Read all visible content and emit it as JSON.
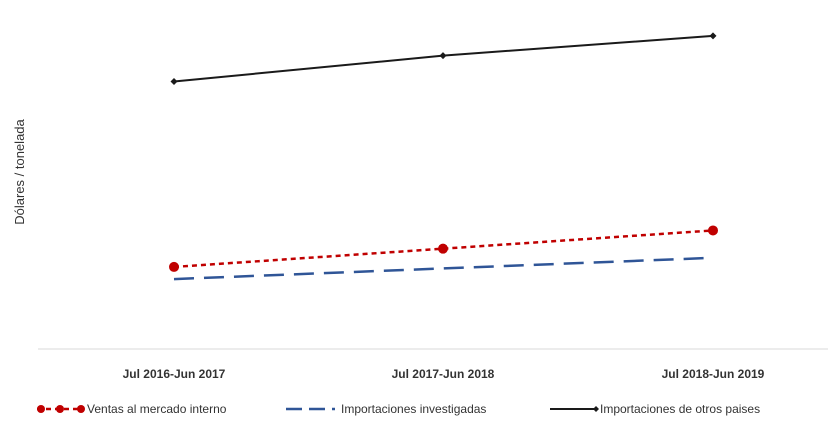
{
  "chart_data": {
    "type": "line",
    "title": "",
    "xlabel": "",
    "ylabel": "Dólares / tonelada",
    "categories": [
      "Jul 2016-Jun 2017",
      "Jul 2017-Jun 2018",
      "Jul 2018-Jun 2019"
    ],
    "ylim": [
      0,
      100
    ],
    "grid": false,
    "legend_position": "bottom",
    "series": [
      {
        "name": "Ventas al mercado interno",
        "values": [
          27,
          33,
          39
        ],
        "color": "#c00000",
        "style": "dotted",
        "marker": "circle"
      },
      {
        "name": "Importaciones investigadas",
        "values": [
          23,
          26.5,
          30
        ],
        "color": "#2f5597",
        "style": "dashed",
        "marker": "none"
      },
      {
        "name": "Importaciones de otros paises",
        "values": [
          88,
          96.5,
          103
        ],
        "color": "#1a1a1a",
        "style": "solid",
        "marker": "diamond"
      }
    ]
  }
}
